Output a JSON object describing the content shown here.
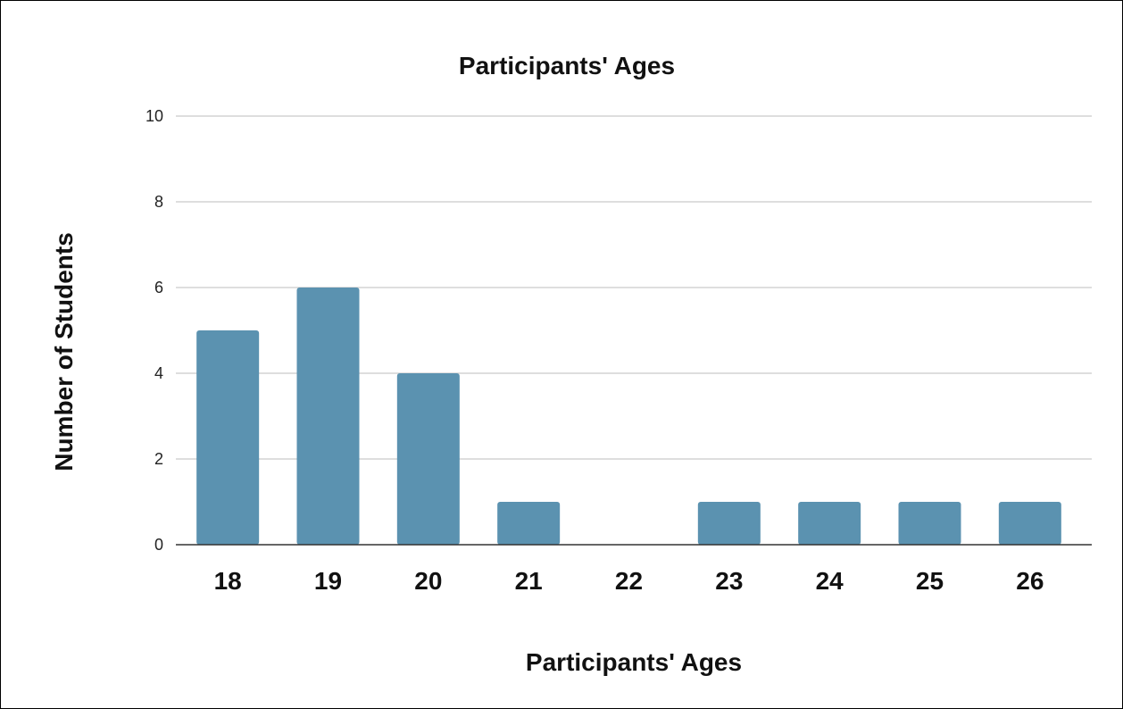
{
  "chart_data": {
    "type": "bar",
    "title": "Participants' Ages",
    "xlabel": "Participants' Ages",
    "ylabel": "Number of Students",
    "categories": [
      "18",
      "19",
      "20",
      "21",
      "22",
      "23",
      "24",
      "25",
      "26"
    ],
    "values": [
      5,
      6,
      4,
      1,
      0,
      1,
      1,
      1,
      1
    ],
    "ylim": [
      0,
      10
    ],
    "yticks": [
      "0",
      "2",
      "4",
      "6",
      "8",
      "10"
    ],
    "grid": true,
    "legend": "none",
    "bar_color": "#5b92b0"
  }
}
